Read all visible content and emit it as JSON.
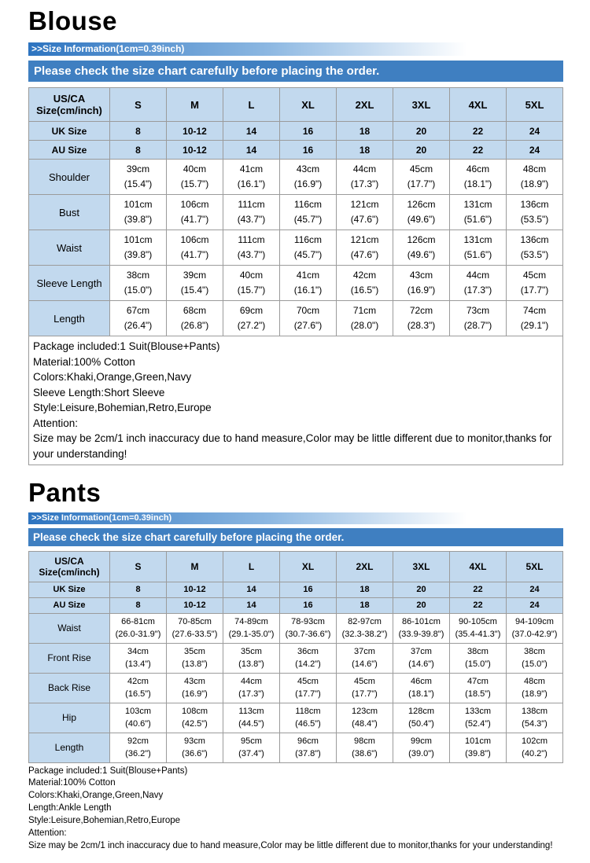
{
  "colors": {
    "banner_blue": "#3f7fc1",
    "table_header_blue": "#c2d9ee",
    "gradient_blue": "#2d74c0"
  },
  "sections": [
    {
      "id": "blouse",
      "title": "Blouse",
      "size_info_header": ">>Size Information(1cm=0.39inch)",
      "banner": "Please check the size chart carefully before placing the order.",
      "table": {
        "corner_label": [
          "US/CA",
          "Size(cm/inch)"
        ],
        "size_headers": [
          "S",
          "M",
          "L",
          "XL",
          "2XL",
          "3XL",
          "4XL",
          "5XL"
        ],
        "simple_rows": [
          {
            "label": "UK Size",
            "values": [
              "8",
              "10-12",
              "14",
              "16",
              "18",
              "20",
              "22",
              "24"
            ]
          },
          {
            "label": "AU Size",
            "values": [
              "8",
              "10-12",
              "14",
              "16",
              "18",
              "20",
              "22",
              "24"
            ]
          }
        ],
        "measure_rows": [
          {
            "label": "Shoulder",
            "cells": [
              [
                "39cm",
                "(15.4\")"
              ],
              [
                "40cm",
                "(15.7\")"
              ],
              [
                "41cm",
                "(16.1\")"
              ],
              [
                "43cm",
                "(16.9\")"
              ],
              [
                "44cm",
                "(17.3\")"
              ],
              [
                "45cm",
                "(17.7\")"
              ],
              [
                "46cm",
                "(18.1\")"
              ],
              [
                "48cm",
                "(18.9\")"
              ]
            ]
          },
          {
            "label": "Bust",
            "cells": [
              [
                "101cm",
                "(39.8\")"
              ],
              [
                "106cm",
                "(41.7\")"
              ],
              [
                "111cm",
                "(43.7\")"
              ],
              [
                "116cm",
                "(45.7\")"
              ],
              [
                "121cm",
                "(47.6\")"
              ],
              [
                "126cm",
                "(49.6\")"
              ],
              [
                "131cm",
                "(51.6\")"
              ],
              [
                "136cm",
                "(53.5\")"
              ]
            ]
          },
          {
            "label": "Waist",
            "cells": [
              [
                "101cm",
                "(39.8\")"
              ],
              [
                "106cm",
                "(41.7\")"
              ],
              [
                "111cm",
                "(43.7\")"
              ],
              [
                "116cm",
                "(45.7\")"
              ],
              [
                "121cm",
                "(47.6\")"
              ],
              [
                "126cm",
                "(49.6\")"
              ],
              [
                "131cm",
                "(51.6\")"
              ],
              [
                "136cm",
                "(53.5\")"
              ]
            ]
          },
          {
            "label": "Sleeve Length",
            "cells": [
              [
                "38cm",
                "(15.0\")"
              ],
              [
                "39cm",
                "(15.4\")"
              ],
              [
                "40cm",
                "(15.7\")"
              ],
              [
                "41cm",
                "(16.1\")"
              ],
              [
                "42cm",
                "(16.5\")"
              ],
              [
                "43cm",
                "(16.9\")"
              ],
              [
                "44cm",
                "(17.3\")"
              ],
              [
                "45cm",
                "(17.7\")"
              ]
            ]
          },
          {
            "label": "Length",
            "cells": [
              [
                "67cm",
                "(26.4\")"
              ],
              [
                "68cm",
                "(26.8\")"
              ],
              [
                "69cm",
                "(27.2\")"
              ],
              [
                "70cm",
                "(27.6\")"
              ],
              [
                "71cm",
                "(28.0\")"
              ],
              [
                "72cm",
                "(28.3\")"
              ],
              [
                "73cm",
                "(28.7\")"
              ],
              [
                "74cm",
                "(29.1\")"
              ]
            ]
          }
        ]
      },
      "details": [
        "Package included:1 Suit(Blouse+Pants)",
        "Material:100% Cotton",
        "Colors:Khaki,Orange,Green,Navy",
        "Sleeve Length:Short Sleeve",
        "Style:Leisure,Bohemian,Retro,Europe",
        "Attention:",
        "Size may be 2cm/1 inch inaccuracy due to hand measure,Color may be little different due to monitor,thanks for your understanding!"
      ]
    },
    {
      "id": "pants",
      "title": "Pants",
      "size_info_header": ">>Size Information(1cm=0.39inch)",
      "banner": "Please check the size chart carefully before placing the order.",
      "table": {
        "corner_label": [
          "US/CA",
          "Size(cm/inch)"
        ],
        "size_headers": [
          "S",
          "M",
          "L",
          "XL",
          "2XL",
          "3XL",
          "4XL",
          "5XL"
        ],
        "simple_rows": [
          {
            "label": "UK Size",
            "values": [
              "8",
              "10-12",
              "14",
              "16",
              "18",
              "20",
              "22",
              "24"
            ]
          },
          {
            "label": "AU Size",
            "values": [
              "8",
              "10-12",
              "14",
              "16",
              "18",
              "20",
              "22",
              "24"
            ]
          }
        ],
        "measure_rows": [
          {
            "label": "Waist",
            "cells": [
              [
                "66-81cm",
                "(26.0-31.9\")"
              ],
              [
                "70-85cm",
                "(27.6-33.5\")"
              ],
              [
                "74-89cm",
                "(29.1-35.0\")"
              ],
              [
                "78-93cm",
                "(30.7-36.6\")"
              ],
              [
                "82-97cm",
                "(32.3-38.2\")"
              ],
              [
                "86-101cm",
                "(33.9-39.8\")"
              ],
              [
                "90-105cm",
                "(35.4-41.3\")"
              ],
              [
                "94-109cm",
                "(37.0-42.9\")"
              ]
            ]
          },
          {
            "label": "Front Rise",
            "cells": [
              [
                "34cm",
                "(13.4\")"
              ],
              [
                "35cm",
                "(13.8\")"
              ],
              [
                "35cm",
                "(13.8\")"
              ],
              [
                "36cm",
                "(14.2\")"
              ],
              [
                "37cm",
                "(14.6\")"
              ],
              [
                "37cm",
                "(14.6\")"
              ],
              [
                "38cm",
                "(15.0\")"
              ],
              [
                "38cm",
                "(15.0\")"
              ]
            ]
          },
          {
            "label": "Back Rise",
            "cells": [
              [
                "42cm",
                "(16.5\")"
              ],
              [
                "43cm",
                "(16.9\")"
              ],
              [
                "44cm",
                "(17.3\")"
              ],
              [
                "45cm",
                "(17.7\")"
              ],
              [
                "45cm",
                "(17.7\")"
              ],
              [
                "46cm",
                "(18.1\")"
              ],
              [
                "47cm",
                "(18.5\")"
              ],
              [
                "48cm",
                "(18.9\")"
              ]
            ]
          },
          {
            "label": "Hip",
            "cells": [
              [
                "103cm",
                "(40.6\")"
              ],
              [
                "108cm",
                "(42.5\")"
              ],
              [
                "113cm",
                "(44.5\")"
              ],
              [
                "118cm",
                "(46.5\")"
              ],
              [
                "123cm",
                "(48.4\")"
              ],
              [
                "128cm",
                "(50.4\")"
              ],
              [
                "133cm",
                "(52.4\")"
              ],
              [
                "138cm",
                "(54.3\")"
              ]
            ]
          },
          {
            "label": "Length",
            "cells": [
              [
                "92cm",
                "(36.2\")"
              ],
              [
                "93cm",
                "(36.6\")"
              ],
              [
                "95cm",
                "(37.4\")"
              ],
              [
                "96cm",
                "(37.8\")"
              ],
              [
                "98cm",
                "(38.6\")"
              ],
              [
                "99cm",
                "(39.0\")"
              ],
              [
                "101cm",
                "(39.8\")"
              ],
              [
                "102cm",
                "(40.2\")"
              ]
            ]
          }
        ]
      },
      "details": [
        "Package included:1 Suit(Blouse+Pants)",
        "Material:100% Cotton",
        "Colors:Khaki,Orange,Green,Navy",
        "Length:Ankle Length",
        "Style:Leisure,Bohemian,Retro,Europe",
        "Attention:",
        "Size may be 2cm/1 inch inaccuracy due to hand measure,Color may be little different due to monitor,thanks for your understanding!"
      ]
    }
  ]
}
